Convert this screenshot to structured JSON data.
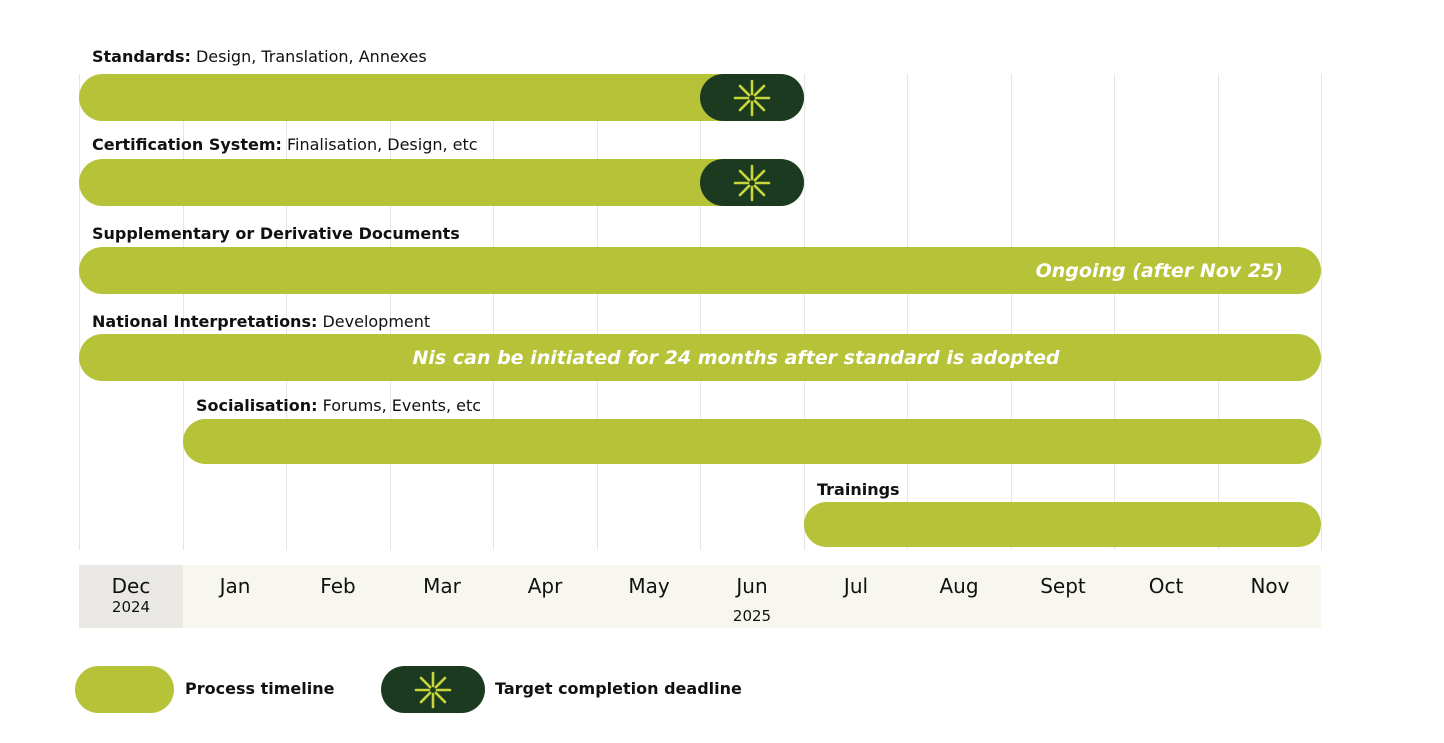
{
  "colors": {
    "process": "#b6c237",
    "deadline": "#1b3a20",
    "star": "#c8d63a",
    "grid": "#e6e6e3",
    "axis_bg": "#f8f7ef",
    "axis_first_bg": "#e9e8e5"
  },
  "chart_data": {
    "type": "gantt",
    "months": [
      "Dec",
      "Jan",
      "Feb",
      "Mar",
      "Apr",
      "May",
      "Jun",
      "Jul",
      "Aug",
      "Sept",
      "Oct",
      "Nov"
    ],
    "years": [
      {
        "month": "Dec",
        "label": "2024"
      },
      {
        "month": "Jun",
        "label": "2025"
      }
    ],
    "tasks": [
      {
        "bold": "Standards:",
        "rest": " Design, Translation, Annexes",
        "start": "Dec",
        "end": "Jun",
        "deadline": "Jun",
        "note": ""
      },
      {
        "bold": "Certification System:",
        "rest": " Finalisation, Design, etc",
        "start": "Dec",
        "end": "Jun",
        "deadline": "Jun",
        "note": ""
      },
      {
        "bold": "Supplementary or Derivative Documents",
        "rest": "",
        "start": "Dec",
        "end": "Nov",
        "deadline": null,
        "note": "Ongoing (after Nov 25)"
      },
      {
        "bold": "National Interpretations:",
        "rest": " Development",
        "start": "Dec",
        "end": "Nov",
        "deadline": null,
        "note": "Nis can be initiated for 24 months after standard is adopted"
      },
      {
        "bold": "Socialisation:",
        "rest": " Forums, Events, etc",
        "start": "Jan",
        "end": "Nov",
        "deadline": null,
        "note": ""
      },
      {
        "bold": "Trainings",
        "rest": "",
        "start": "Jul",
        "end": "Nov",
        "deadline": null,
        "note": ""
      }
    ],
    "legend": [
      {
        "key": "process",
        "label": "Process timeline"
      },
      {
        "key": "deadline",
        "label": "Target completion deadline"
      }
    ]
  }
}
